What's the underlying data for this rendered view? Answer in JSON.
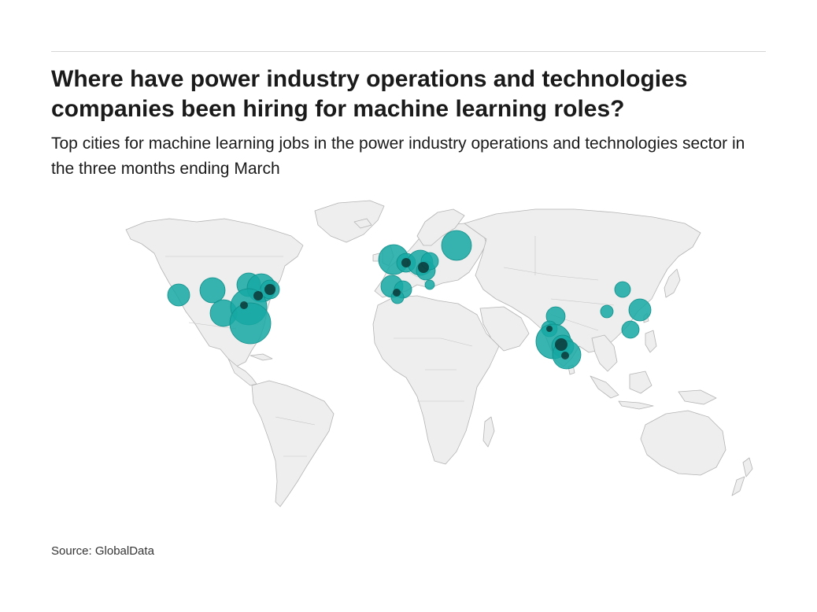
{
  "header": {
    "title": "Where have power industry operations and technologies companies been hiring for machine learning roles?",
    "subtitle": "Top cities for machine learning jobs in the power industry operations and technologies sector in the three months ending March"
  },
  "footer": {
    "source": "Source: GlobalData"
  },
  "colors": {
    "land": "#eeeeee",
    "border": "#b4b4b4",
    "bubble": "#16a8a3",
    "bubble_stroke": "#0f8f8a",
    "text": "#1a1a1a"
  },
  "map": {
    "projection": "equirectangular-like world map",
    "marker": "circle, area proportional to job count"
  }
}
